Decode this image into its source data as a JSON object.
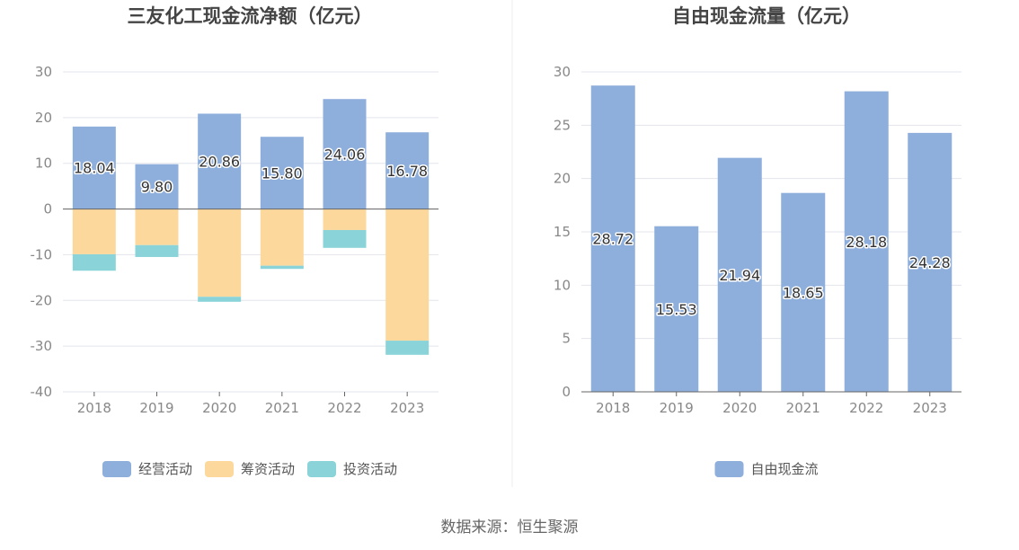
{
  "colors": {
    "operating": "#8eaedc",
    "financing": "#fdd89c",
    "investing": "#8ad4d9",
    "free_cash": "#8eaedc",
    "grid": "#e2e5ec",
    "axis_text": "#888888",
    "title_text": "#444444"
  },
  "source_label": "数据来源：恒生聚源",
  "chart_data": [
    {
      "type": "bar",
      "stacked": true,
      "title": "三友化工现金流净额（亿元）",
      "categories": [
        "2018",
        "2019",
        "2020",
        "2021",
        "2022",
        "2023"
      ],
      "ylim": [
        -40,
        30
      ],
      "yticks": [
        30,
        20,
        10,
        0,
        -10,
        -20,
        -30,
        -40
      ],
      "grid": true,
      "legend_position": "bottom",
      "series": [
        {
          "name": "经营活动",
          "values": [
            18.04,
            9.8,
            20.86,
            15.8,
            24.06,
            16.78
          ],
          "labels": [
            "18.04",
            "9.80",
            "20.86",
            "15.80",
            "24.06",
            "16.78"
          ]
        },
        {
          "name": "筹资活动",
          "values": [
            -9.9,
            -7.9,
            -19.2,
            -12.4,
            -4.6,
            -28.8
          ]
        },
        {
          "name": "投资活动",
          "values": [
            -3.6,
            -2.6,
            -1.1,
            -0.7,
            -3.9,
            -3.1
          ]
        }
      ]
    },
    {
      "type": "bar",
      "title": "自由现金流量（亿元）",
      "categories": [
        "2018",
        "2019",
        "2020",
        "2021",
        "2022",
        "2023"
      ],
      "ylim": [
        0,
        30
      ],
      "yticks": [
        30,
        25,
        20,
        15,
        10,
        5,
        0
      ],
      "grid": true,
      "legend_position": "bottom",
      "series": [
        {
          "name": "自由现金流",
          "values": [
            28.72,
            15.53,
            21.94,
            18.65,
            28.18,
            24.28
          ],
          "labels": [
            "28.72",
            "15.53",
            "21.94",
            "18.65",
            "28.18",
            "24.28"
          ]
        }
      ]
    }
  ]
}
